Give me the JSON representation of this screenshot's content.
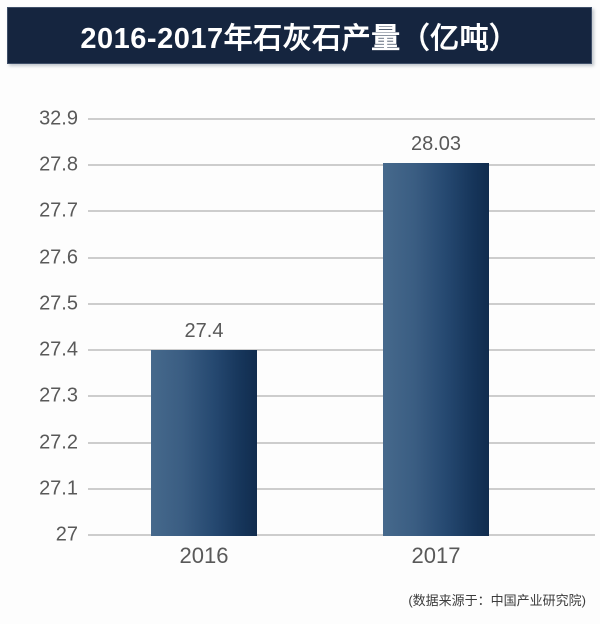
{
  "chart_data": {
    "type": "bar",
    "title": "2016-2017年石灰石产量（亿吨）",
    "categories": [
      "2016",
      "2017"
    ],
    "values": [
      27.4,
      28.03
    ],
    "data_labels": [
      "27.4",
      "28.03"
    ],
    "y_ticks_top_to_bottom": [
      32.9,
      27.8,
      27.7,
      27.6,
      27.5,
      27.4,
      27.3,
      27.2,
      27.1,
      27
    ],
    "ylim": [
      27,
      32.9
    ],
    "xlabel": "",
    "ylabel": "",
    "grid": true,
    "legend": false,
    "source_note": "(数据来源于：中国产业研究院)",
    "colors": {
      "title_bg": "#15253f",
      "title_text": "#ffffff",
      "bar_gradient_left": "#46698c",
      "bar_gradient_right": "#112c4e",
      "gridline": "#cdcdcd",
      "tick_text": "#595959",
      "label_text": "#595959",
      "source_text": "#3c3c3c"
    }
  }
}
